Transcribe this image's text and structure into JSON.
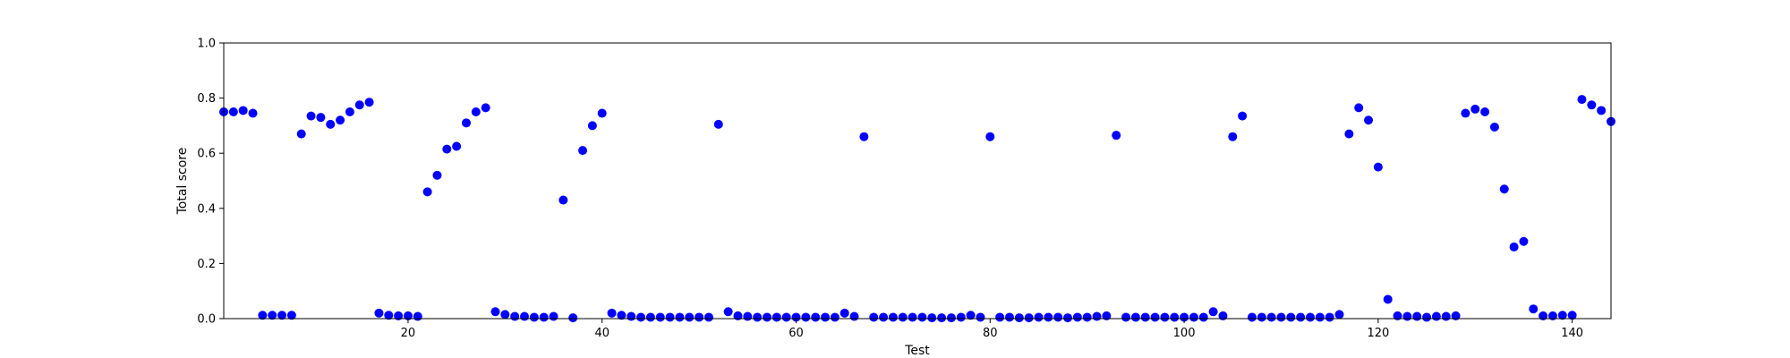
{
  "chart_data": {
    "type": "scatter",
    "title": "",
    "xlabel": "Test",
    "ylabel": "Total score",
    "xlim": [
      1,
      144
    ],
    "ylim": [
      0.0,
      1.0
    ],
    "xticks": [
      20,
      40,
      60,
      80,
      100,
      120,
      140
    ],
    "xtick_labels": [
      "20",
      "40",
      "60",
      "80",
      "100",
      "120",
      "140"
    ],
    "yticks": [
      0.0,
      0.2,
      0.4,
      0.6,
      0.8,
      1.0
    ],
    "ytick_labels": [
      "0.0",
      "0.2",
      "0.4",
      "0.6",
      "0.8",
      "1.0"
    ],
    "grid": false,
    "legend": "none",
    "marker_color": "#0000ff",
    "series": [
      {
        "x": [
          1,
          2,
          3,
          4,
          5,
          6,
          7,
          8,
          9,
          10,
          11,
          12,
          13,
          14,
          15,
          16,
          17,
          18,
          19,
          20,
          21,
          22,
          23,
          24,
          25,
          26,
          27,
          28,
          29,
          30,
          31,
          32,
          33,
          34,
          35,
          36,
          37,
          38,
          39,
          40,
          41,
          42,
          43,
          44,
          45,
          46,
          47,
          48,
          49,
          50,
          51,
          52,
          53,
          54,
          55,
          56,
          57,
          58,
          59,
          60,
          61,
          62,
          63,
          64,
          65,
          66,
          67,
          68,
          69,
          70,
          71,
          72,
          73,
          74,
          75,
          76,
          77,
          78,
          79,
          80,
          81,
          82,
          83,
          84,
          85,
          86,
          87,
          88,
          89,
          90,
          91,
          92,
          93,
          94,
          95,
          96,
          97,
          98,
          99,
          100,
          101,
          102,
          103,
          104,
          105,
          106,
          107,
          108,
          109,
          110,
          111,
          112,
          113,
          114,
          115,
          116,
          117,
          118,
          119,
          120,
          121,
          122,
          123,
          124,
          125,
          126,
          127,
          128,
          129,
          130,
          131,
          132,
          133,
          134,
          135,
          136,
          137,
          138,
          139,
          140,
          141,
          142,
          143,
          144
        ],
        "y": [
          0.75,
          0.75,
          0.755,
          0.745,
          0.012,
          0.012,
          0.012,
          0.012,
          0.67,
          0.735,
          0.73,
          0.705,
          0.72,
          0.75,
          0.775,
          0.785,
          0.02,
          0.012,
          0.01,
          0.01,
          0.008,
          0.46,
          0.52,
          0.615,
          0.625,
          0.71,
          0.75,
          0.765,
          0.025,
          0.015,
          0.008,
          0.008,
          0.005,
          0.005,
          0.008,
          0.43,
          0.003,
          0.61,
          0.7,
          0.745,
          0.02,
          0.012,
          0.008,
          0.005,
          0.005,
          0.005,
          0.005,
          0.005,
          0.005,
          0.005,
          0.005,
          0.705,
          0.025,
          0.01,
          0.008,
          0.005,
          0.005,
          0.005,
          0.005,
          0.005,
          0.005,
          0.005,
          0.005,
          0.005,
          0.02,
          0.008,
          0.66,
          0.005,
          0.005,
          0.005,
          0.005,
          0.005,
          0.005,
          0.003,
          0.003,
          0.003,
          0.005,
          0.012,
          0.005,
          0.66,
          0.005,
          0.005,
          0.003,
          0.003,
          0.005,
          0.005,
          0.005,
          0.003,
          0.005,
          0.005,
          0.008,
          0.01,
          0.665,
          0.005,
          0.005,
          0.005,
          0.005,
          0.005,
          0.005,
          0.005,
          0.005,
          0.005,
          0.025,
          0.01,
          0.66,
          0.735,
          0.005,
          0.005,
          0.005,
          0.005,
          0.005,
          0.005,
          0.005,
          0.005,
          0.005,
          0.015,
          0.67,
          0.765,
          0.72,
          0.55,
          0.07,
          0.01,
          0.008,
          0.008,
          0.005,
          0.008,
          0.008,
          0.01,
          0.745,
          0.76,
          0.75,
          0.695,
          0.47,
          0.26,
          0.28,
          0.035,
          0.01,
          0.01,
          0.012,
          0.012,
          0.795,
          0.775,
          0.755,
          0.715
        ]
      }
    ]
  }
}
